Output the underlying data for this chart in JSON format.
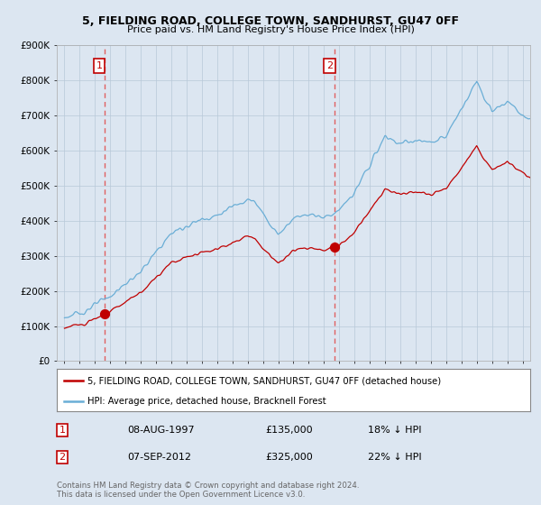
{
  "title1": "5, FIELDING ROAD, COLLEGE TOWN, SANDHURST, GU47 0FF",
  "title2": "Price paid vs. HM Land Registry's House Price Index (HPI)",
  "legend_line1": "5, FIELDING ROAD, COLLEGE TOWN, SANDHURST, GU47 0FF (detached house)",
  "legend_line2": "HPI: Average price, detached house, Bracknell Forest",
  "annotation1_date": "08-AUG-1997",
  "annotation1_price": "£135,000",
  "annotation1_hpi": "18% ↓ HPI",
  "annotation2_date": "07-SEP-2012",
  "annotation2_price": "£325,000",
  "annotation2_hpi": "22% ↓ HPI",
  "footer": "Contains HM Land Registry data © Crown copyright and database right 2024.\nThis data is licensed under the Open Government Licence v3.0.",
  "sale1_year": 1997.62,
  "sale1_value": 135000,
  "sale2_year": 2012.7,
  "sale2_value": 325000,
  "hpi_color": "#6aaed6",
  "sale_color": "#c00000",
  "vline_color": "#e06060",
  "ylim_min": 0,
  "ylim_max": 900000,
  "xlim_min": 1994.5,
  "xlim_max": 2025.5,
  "background_color": "#dce6f1",
  "plot_bg_color": "#dce6f1"
}
